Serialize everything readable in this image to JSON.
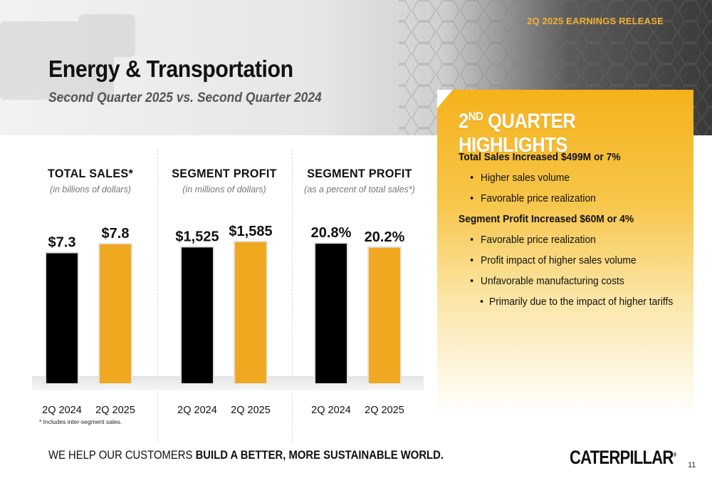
{
  "header": {
    "release_tag": "2Q 2025 EARNINGS RELEASE",
    "title": "Energy & Transportation",
    "subtitle": "Second Quarter 2025 vs. Second Quarter 2024"
  },
  "highlights": {
    "title_main": "2",
    "title_sup": "ND",
    "title_rest": " QUARTER HIGHLIGHTS",
    "heading1": "Total Sales Increased $499M or 7%",
    "h1_bullets": [
      "Higher sales volume",
      "Favorable price realization"
    ],
    "heading2": "Segment Profit Increased $60M or 4%",
    "h2_bullets": [
      "Favorable price realization",
      "Profit impact of higher sales volume",
      "Unfavorable manufacturing costs"
    ],
    "sub_bullet": "Primarily due to the impact of higher tariffs"
  },
  "colors": {
    "prior_year": "#000000",
    "current_year": "#f0a820",
    "accent": "#f2b233"
  },
  "chart_data": [
    {
      "type": "bar",
      "title": "TOTAL SALES*",
      "subtitle": "(in billions of dollars)",
      "categories": [
        "2Q 2024",
        "2Q 2025"
      ],
      "values": [
        7.3,
        7.8
      ],
      "value_labels": [
        "$7.3",
        "$7.8"
      ],
      "ylim": [
        0,
        8.4
      ]
    },
    {
      "type": "bar",
      "title": "SEGMENT PROFIT",
      "subtitle": "(in millions of dollars)",
      "categories": [
        "2Q 2024",
        "2Q 2025"
      ],
      "values": [
        1525,
        1585
      ],
      "value_labels": [
        "$1,525",
        "$1,585"
      ],
      "ylim": [
        0,
        1680
      ]
    },
    {
      "type": "bar",
      "title": "SEGMENT PROFIT",
      "subtitle": "(as a percent of total sales*)",
      "categories": [
        "2Q 2024",
        "2Q 2025"
      ],
      "values": [
        20.8,
        20.2
      ],
      "value_labels": [
        "20.8%",
        "20.2%"
      ],
      "ylim": [
        0,
        22.3
      ]
    }
  ],
  "footnote": "* Includes inter-segment sales.",
  "footer": {
    "tagline_plain": "WE HELP OUR CUSTOMERS ",
    "tagline_bold": "BUILD A BETTER, MORE SUSTAINABLE WORLD.",
    "logo": "CATERPILLAR",
    "logo_mark": "®",
    "page_number": "11"
  }
}
